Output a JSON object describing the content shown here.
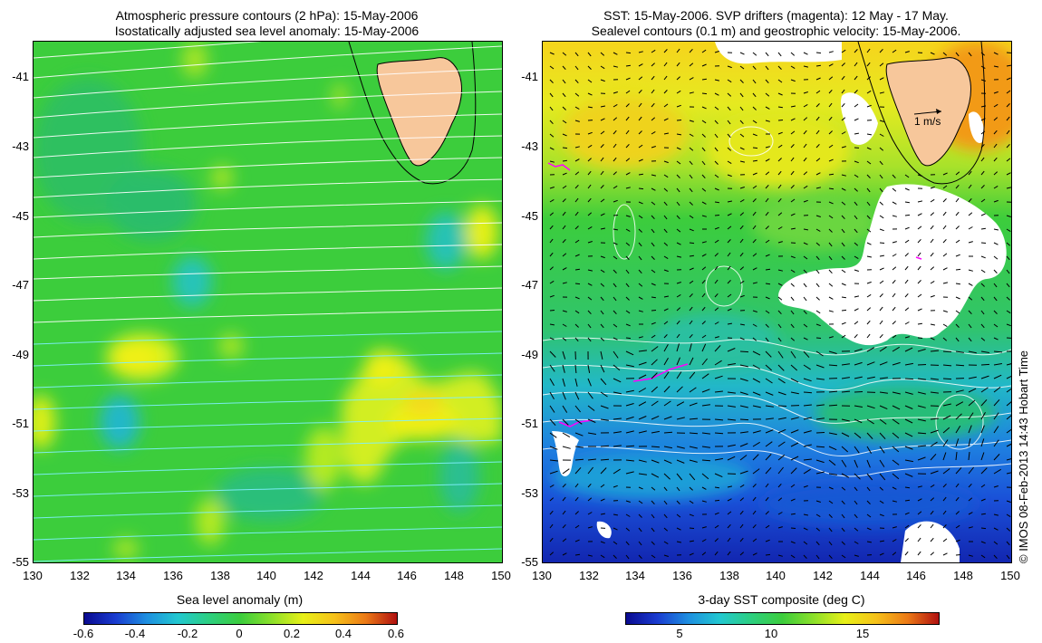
{
  "left_panel": {
    "title_line1": "Atmospheric pressure contours (2 hPa): 15-May-2006",
    "title_line2": "Isostatically adjusted sea level anomaly: 15-May-2006",
    "colorbar_label": "Sea level anomaly (m)",
    "colorbar_ticks": [
      "-0.6",
      "-0.4",
      "-0.2",
      "0",
      "0.2",
      "0.4",
      "0.6"
    ]
  },
  "right_panel": {
    "title_line1": "SST: 15-May-2006. SVP drifters (magenta): 12 May - 17 May.",
    "title_line2": "Sealevel contours (0.1 m) and geostrophic velocity: 15-May-2006.",
    "colorbar_label": "3-day SST composite (deg C)",
    "colorbar_ticks": [
      "5",
      "10",
      "15"
    ],
    "velocity_key": "1 m/s"
  },
  "axes": {
    "y_ticks": [
      "-41",
      "-43",
      "-45",
      "-47",
      "-49",
      "-51",
      "-53",
      "-55"
    ],
    "x_ticks": [
      "130",
      "132",
      "134",
      "136",
      "138",
      "140",
      "142",
      "144",
      "146",
      "148",
      "150"
    ]
  },
  "credit": "© IMOS 08-Feb-2013 14:43 Hobart Time",
  "colors": {
    "land": "#f7c79b",
    "drifters": "#ff00ff",
    "contours": "#ffffff"
  }
}
